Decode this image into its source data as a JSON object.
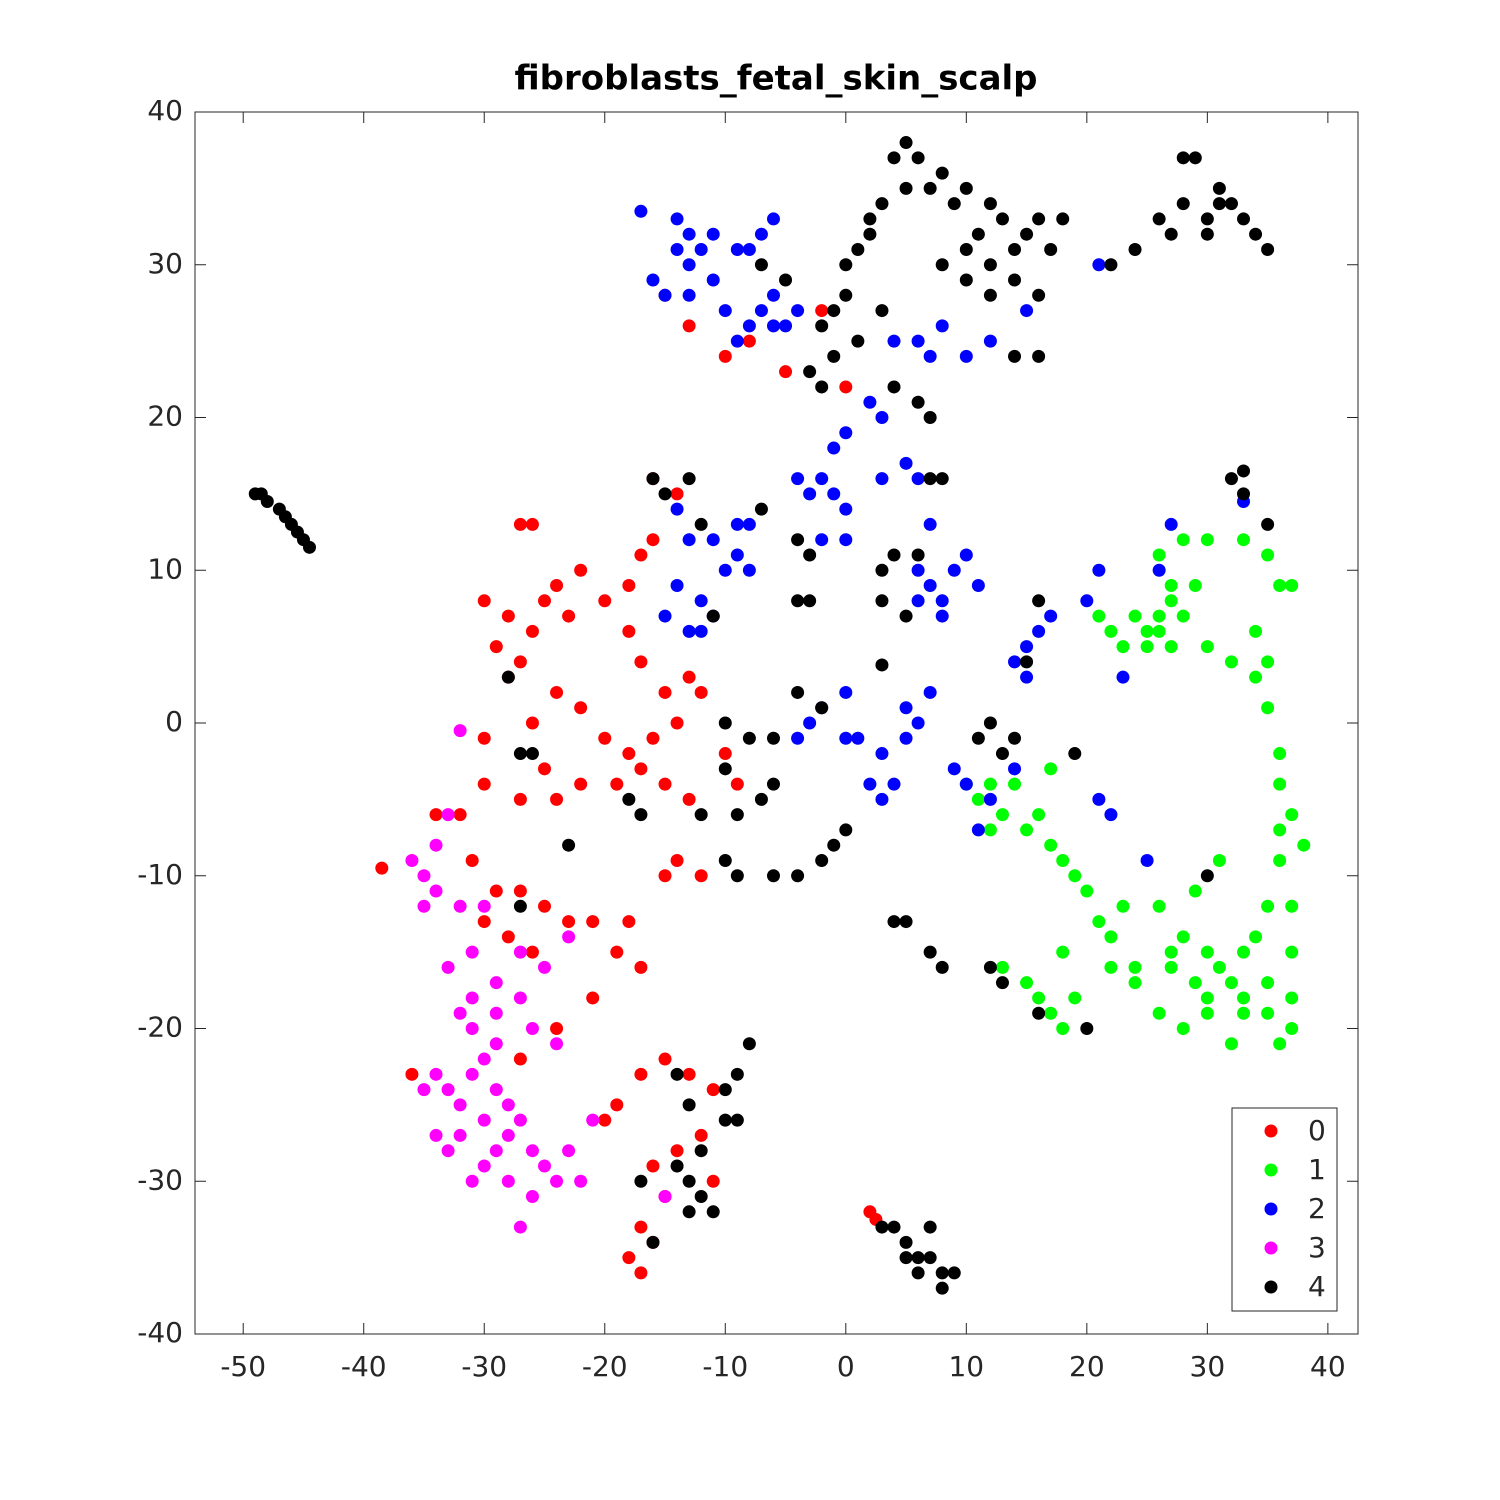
{
  "chart_data": {
    "type": "scatter",
    "title": "fibroblasts_fetal_skin_scalp",
    "xlim": [
      -54,
      42.5
    ],
    "ylim": [
      -40,
      40
    ],
    "xticks": [
      -50,
      -40,
      -30,
      -20,
      -10,
      0,
      10,
      20,
      30,
      40
    ],
    "yticks": [
      -40,
      -30,
      -20,
      -10,
      0,
      10,
      20,
      30,
      40
    ],
    "legend": "lower right",
    "series": [
      {
        "name": "0",
        "color": "#ff0000",
        "x": [
          -28,
          -29,
          -27,
          -26,
          -30,
          -28,
          -25,
          -24,
          -22,
          -23,
          -20,
          -18,
          -17,
          -16,
          -18,
          -17,
          -15,
          -13,
          -12,
          -14,
          -16,
          -18,
          -20,
          -22,
          -24,
          -26,
          -25,
          -27,
          -24,
          -22,
          -19,
          -17,
          -15,
          -13,
          -30,
          -30,
          -32,
          -34,
          -31,
          -29,
          -27,
          -30,
          -28,
          -26,
          -25,
          -23,
          -21,
          -19,
          -18,
          -17,
          -15,
          -14,
          -12,
          -38.5,
          -36,
          -27,
          -24,
          -21,
          -17,
          -15,
          -13,
          -11,
          -12,
          -14,
          -16,
          -15,
          -17,
          -18,
          -17,
          -19,
          -20,
          -16,
          -11,
          2,
          2.5,
          -26,
          -27,
          -10,
          -8,
          -5,
          -13,
          -15,
          -2,
          0,
          -14,
          -16,
          -10,
          -9
        ],
        "values": [
          7,
          5,
          4,
          6,
          8,
          3,
          8,
          9,
          10,
          7,
          8,
          9,
          11,
          12,
          6,
          4,
          2,
          3,
          2,
          0,
          -1,
          -2,
          -1,
          1,
          2,
          0,
          -3,
          -5,
          -5,
          -4,
          -4,
          -3,
          -4,
          -5,
          -1,
          -4,
          -6,
          -6,
          -9,
          -11,
          -11,
          -13,
          -14,
          -15,
          -12,
          -13,
          -13,
          -15,
          -13,
          -16,
          -10,
          -9,
          -10,
          -9.5,
          -23,
          -22,
          -20,
          -18,
          -23,
          -22,
          -23,
          -24,
          -27,
          -28,
          -29,
          -31,
          -33,
          -35,
          -36,
          -25,
          -26,
          -34,
          -30,
          -32,
          -32.5,
          13,
          13,
          24,
          25,
          23,
          26,
          28,
          27,
          22,
          15,
          16,
          -2,
          -4
        ]
      },
      {
        "name": "1",
        "color": "#00ff00",
        "x": [
          22,
          24,
          26,
          28,
          27,
          30,
          32,
          25,
          23,
          21,
          28,
          30,
          33,
          35,
          36,
          37,
          34,
          35,
          35,
          34,
          29,
          27,
          26,
          36,
          36,
          36,
          37,
          38,
          36,
          37,
          35,
          37,
          37,
          35,
          36,
          33,
          32,
          30,
          28,
          27,
          30,
          28,
          26,
          32,
          31,
          29,
          26,
          24,
          22,
          21,
          23,
          20,
          18,
          17,
          16,
          15,
          13,
          12,
          11,
          14,
          17,
          19,
          18,
          16,
          17,
          18,
          19,
          15,
          13,
          22,
          24,
          27,
          33,
          35,
          37,
          12,
          10,
          26,
          25,
          27,
          33,
          30,
          31,
          34,
          29
        ],
        "values": [
          6,
          7,
          6,
          7,
          5,
          5,
          4,
          5,
          5,
          7,
          12,
          12,
          12,
          11,
          9,
          9,
          6,
          4,
          1,
          3,
          9,
          9,
          11,
          -2,
          -4,
          -7,
          -6,
          -8,
          -9,
          -12,
          -12,
          -15,
          -18,
          -19,
          -21,
          -19,
          -17,
          -15,
          -14,
          -16,
          -19,
          -20,
          -19,
          -21,
          -9,
          -11,
          -12,
          -16,
          -14,
          -13,
          -12,
          -11,
          -9,
          -8,
          -6,
          -7,
          -6,
          -4,
          -5,
          -4,
          -3,
          -10,
          -15,
          -18,
          -19,
          -20,
          -18,
          -17,
          -16,
          -16,
          -17,
          -15,
          -15,
          -17,
          -20,
          -7,
          -4,
          7,
          6,
          8,
          -18,
          -18,
          -16,
          -14,
          -17
        ]
      },
      {
        "name": "2",
        "color": "#0000ff",
        "x": [
          -17,
          -14,
          -13,
          -14,
          -12,
          -13,
          -11,
          -16,
          -15,
          -13,
          -11,
          -10,
          -9,
          -8,
          -7,
          -6,
          -8,
          -7,
          -6,
          -9,
          -6,
          -5,
          -4,
          4,
          6,
          8,
          7,
          10,
          12,
          15,
          21,
          0,
          2,
          3,
          -1,
          -2,
          -1,
          0,
          -3,
          -4,
          -2,
          0,
          5,
          6,
          3,
          -14,
          -13,
          -11,
          -10,
          -9,
          -14,
          -15,
          -12,
          -13,
          -9,
          -8,
          -11,
          -8,
          -12,
          6,
          7,
          8,
          9,
          10,
          11,
          8,
          6,
          7,
          16,
          15,
          17,
          15,
          14,
          20,
          21,
          23,
          5,
          6,
          7,
          5,
          3,
          2,
          3,
          4,
          1,
          0,
          0,
          -2,
          -3,
          -4,
          9,
          10,
          11,
          12,
          14,
          21,
          22,
          25,
          26,
          27,
          33
        ],
        "values": [
          33.5,
          33,
          32,
          31,
          31,
          30,
          32,
          29,
          28,
          28,
          29,
          27,
          25,
          26,
          27,
          28,
          31,
          32,
          33,
          31,
          26,
          26,
          27,
          25,
          25,
          26,
          24,
          24,
          25,
          27,
          30,
          19,
          21,
          20,
          18,
          16,
          15,
          14,
          15,
          16,
          12,
          12,
          17,
          16,
          16,
          14,
          12,
          12,
          10,
          11,
          9,
          7,
          8,
          6,
          13,
          13,
          7,
          10,
          6,
          10,
          9,
          8,
          10,
          11,
          9,
          7,
          8,
          13,
          6,
          5,
          7,
          3,
          4,
          8,
          10,
          3,
          1,
          0,
          2,
          -1,
          -2,
          -4,
          -5,
          -4,
          -1,
          -1,
          2,
          1,
          0,
          -1,
          -3,
          -4,
          -7,
          -5,
          -3,
          -5,
          -6,
          -9,
          10,
          13,
          14.5
        ]
      },
      {
        "name": "3",
        "color": "#ff00ff",
        "x": [
          -32,
          -33,
          -34,
          -35,
          -36,
          -35,
          -34,
          -32,
          -30,
          -31,
          -29,
          -31,
          -29,
          -27,
          -26,
          -25,
          -27,
          -33,
          -32,
          -24,
          -23,
          -34,
          -33,
          -32,
          -31,
          -30,
          -29,
          -28,
          -27,
          -26,
          -25,
          -24,
          -23,
          -22,
          -26,
          -27,
          -28,
          -30,
          -31,
          -33,
          -34,
          -32,
          -29,
          -30,
          -29,
          -21,
          -15,
          -35,
          -31,
          -28
        ],
        "values": [
          -0.5,
          -6,
          -8,
          -10,
          -9,
          -12,
          -11,
          -12,
          -12,
          -15,
          -17,
          -18,
          -19,
          -18,
          -20,
          -16,
          -15,
          -16,
          -19,
          -21,
          -14,
          -23,
          -24,
          -25,
          -23,
          -26,
          -24,
          -27,
          -26,
          -28,
          -29,
          -30,
          -28,
          -30,
          -31,
          -33,
          -30,
          -29,
          -30,
          -28,
          -27,
          -27,
          -28,
          -22,
          -21,
          -26,
          -31,
          -24,
          -20,
          -25
        ]
      },
      {
        "name": "4",
        "color": "#000000",
        "x": [
          -49,
          -48,
          -47,
          -46,
          -45,
          -44.5,
          -48.5,
          -46.5,
          -45.5,
          5,
          4,
          6,
          7,
          8,
          5,
          3,
          2,
          9,
          10,
          12,
          13,
          11,
          10,
          12,
          14,
          15,
          16,
          14,
          12,
          10,
          8,
          16,
          17,
          18,
          22,
          24,
          26,
          28,
          30,
          31,
          29,
          28,
          32,
          33,
          34,
          30,
          35,
          31,
          27,
          0,
          1,
          2,
          0,
          -1,
          -2,
          -1,
          -3,
          -2,
          1,
          -5,
          -7,
          14,
          16,
          3,
          4,
          6,
          7,
          7,
          8,
          -4,
          -3,
          -4,
          -3,
          3,
          4,
          6,
          3,
          5,
          -12,
          -13,
          -11,
          -16,
          -15,
          -7,
          -10,
          -10,
          -8,
          -6,
          -7,
          -6,
          -9,
          -10,
          -9,
          -6,
          -4,
          -2,
          -1,
          0,
          -12,
          -18,
          -17,
          -26,
          -27,
          -28,
          -27,
          -23,
          4,
          5,
          7,
          8,
          12,
          13,
          16,
          20,
          14,
          12,
          11,
          13,
          15,
          16,
          19,
          30,
          32,
          33,
          35,
          33,
          -14,
          -13,
          -10,
          -9,
          -8,
          -9,
          -10,
          -12,
          -13,
          -12,
          -11,
          -13,
          -17,
          -16,
          -14,
          3,
          4,
          5,
          6,
          7,
          8,
          9,
          8,
          7,
          5,
          6,
          -2,
          -4,
          3
        ],
        "values": [
          15,
          14.5,
          14,
          13,
          12,
          11.5,
          15,
          13.5,
          12.5,
          38,
          37,
          37,
          35,
          36,
          35,
          34,
          33,
          34,
          35,
          34,
          33,
          32,
          31,
          30,
          31,
          32,
          33,
          29,
          28,
          29,
          30,
          28,
          31,
          33,
          30,
          31,
          33,
          34,
          33,
          35,
          37,
          37,
          34,
          33,
          32,
          32,
          31,
          34,
          32,
          30,
          31,
          32,
          28,
          27,
          26,
          24,
          23,
          22,
          25,
          29,
          30,
          24,
          24,
          27,
          22,
          21,
          20,
          16,
          16,
          12,
          11,
          8,
          8,
          10,
          11,
          11,
          8,
          7,
          13,
          16,
          7,
          16,
          15,
          14,
          0,
          -3,
          -1,
          -1,
          -5,
          -4,
          -6,
          -9,
          -10,
          -10,
          -10,
          -9,
          -8,
          -7,
          -6,
          -5,
          -6,
          -2,
          -2,
          3,
          -12,
          -8,
          -13,
          -13,
          -15,
          -16,
          -16,
          -17,
          -19,
          -20,
          -1,
          0,
          -1,
          -2,
          4,
          8,
          -2,
          -10,
          16,
          16.5,
          13,
          15,
          -23,
          -25,
          -24,
          -23,
          -21,
          -26,
          -26,
          -28,
          -30,
          -31,
          -32,
          -32,
          -30,
          -34,
          -29,
          -33,
          -33,
          -34,
          -35,
          -35,
          -36,
          -36,
          -37,
          -33,
          -35,
          -36,
          1,
          2,
          3.8
        ]
      }
    ]
  }
}
